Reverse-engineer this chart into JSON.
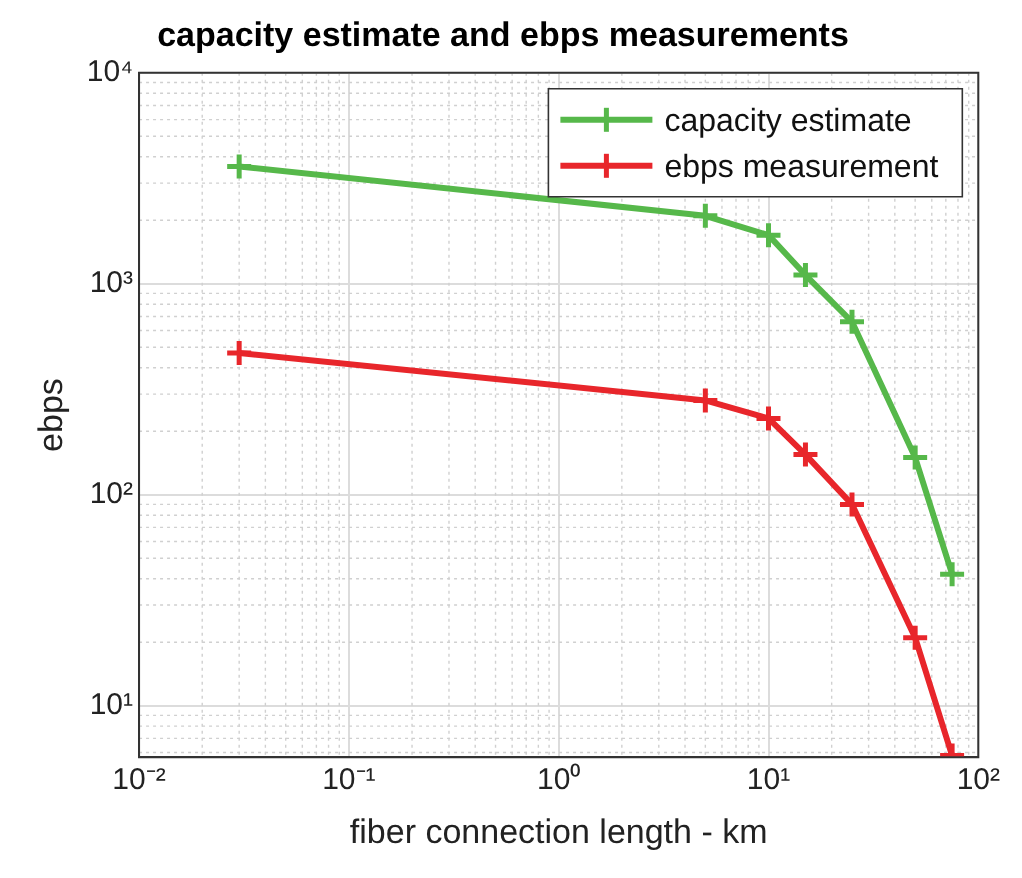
{
  "chart_data": {
    "type": "line",
    "title": "capacity estimate and ebps measurements",
    "xlabel": "fiber connection length - km",
    "ylabel": "ebps",
    "log": "xy",
    "grid": true,
    "legend": "top right",
    "marker": "cross",
    "line_style": "solid",
    "xlim": [
      0.01,
      100
    ],
    "ylim": [
      5.7,
      10000
    ],
    "xticks": [
      {
        "value": 0.01,
        "label": "10⁻²"
      },
      {
        "value": 0.1,
        "label": "10⁻¹"
      },
      {
        "value": 1,
        "label": "10⁰"
      },
      {
        "value": 10,
        "label": "10¹"
      },
      {
        "value": 100,
        "label": "10²"
      }
    ],
    "yticks": [
      {
        "value": 10,
        "label": "10¹"
      },
      {
        "value": 100,
        "label": "10²"
      },
      {
        "value": 1000,
        "label": "10³"
      },
      {
        "value": 10000,
        "label": "10⁴"
      }
    ],
    "x": [
      0.03,
      5,
      10,
      15,
      25,
      50,
      75
    ],
    "series": [
      {
        "name": "capacity estimate",
        "color": "#56b84a",
        "values": [
          3600,
          2100,
          1700,
          1100,
          660,
          150,
          42
        ]
      },
      {
        "name": "ebps measurement",
        "color": "#e8262b",
        "values": [
          470,
          280,
          230,
          155,
          90,
          21,
          5.8
        ]
      }
    ]
  }
}
